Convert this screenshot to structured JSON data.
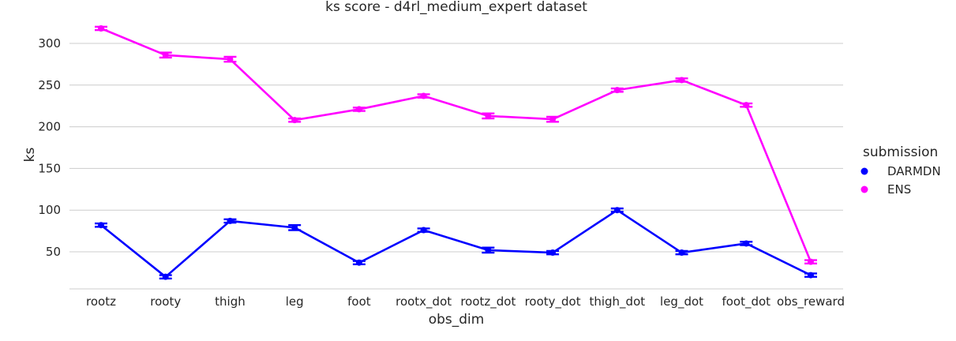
{
  "chart_data": {
    "type": "line",
    "title": "ks score - d4rl_medium_expert dataset",
    "xlabel": "obs_dim",
    "ylabel": "ks",
    "categories": [
      "rootz",
      "rooty",
      "thigh",
      "leg",
      "foot",
      "rootx_dot",
      "rootz_dot",
      "rooty_dot",
      "thigh_dot",
      "leg_dot",
      "foot_dot",
      "obs_reward"
    ],
    "yticks": [
      50,
      100,
      150,
      200,
      250,
      300
    ],
    "ylim": [
      5,
      330
    ],
    "grid": "horizontal",
    "legend": {
      "title": "submission",
      "placement": "right"
    },
    "series": [
      {
        "name": "DARMDN",
        "color": "#0000ff",
        "values": [
          82,
          20,
          87,
          79,
          37,
          76,
          52,
          49,
          100,
          49,
          60,
          22
        ],
        "err": [
          2,
          2,
          2,
          3,
          2,
          2,
          3,
          2,
          2,
          2,
          2,
          2
        ]
      },
      {
        "name": "ENS",
        "color": "#ff00ff",
        "values": [
          318,
          286,
          281,
          208,
          221,
          237,
          213,
          209,
          244,
          256,
          226,
          38
        ],
        "err": [
          2,
          3,
          3,
          2,
          2,
          2,
          3,
          3,
          2,
          2,
          2,
          2
        ]
      }
    ]
  }
}
